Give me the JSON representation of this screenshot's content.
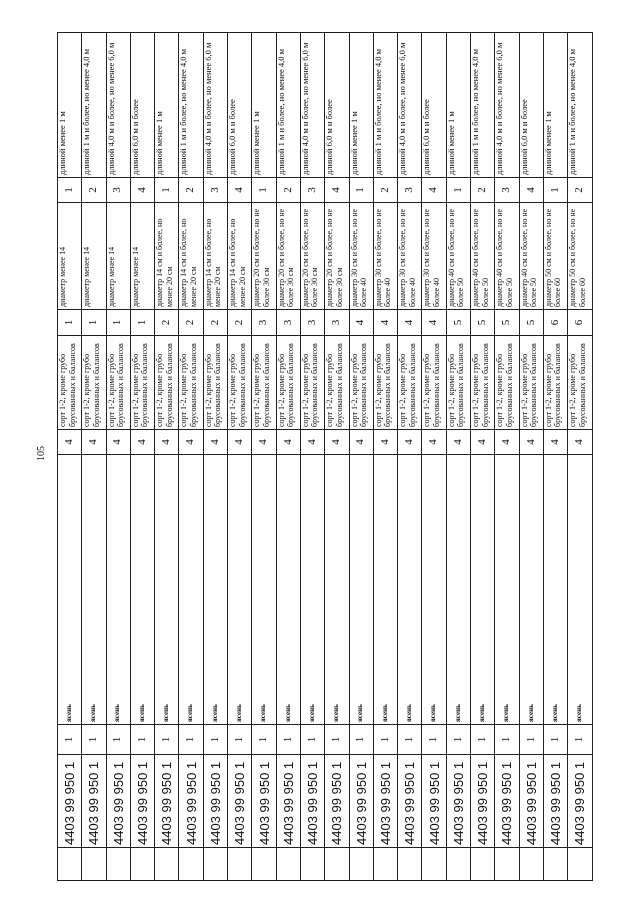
{
  "page_number": "105",
  "rows": [
    {
      "code": "4403 99 950 1",
      "c1": "1",
      "species": "ясень",
      "sort_num": "4",
      "sort": "сорт 1-2, кроме грубо брусованных и балансов",
      "diam_num": "1",
      "diam": "диаметр менее 14",
      "len_num": "1",
      "len": "длиной менее 1 м"
    },
    {
      "code": "4403 99 950 1",
      "c1": "1",
      "species": "ясень",
      "sort_num": "4",
      "sort": "сорт 1-2, кроме грубо брусованных и балансов",
      "diam_num": "1",
      "diam": "диаметр менее 14",
      "len_num": "2",
      "len": "длиной 1 м и более, но менее 4,0 м"
    },
    {
      "code": "4403 99 950 1",
      "c1": "1",
      "species": "ясень",
      "sort_num": "4",
      "sort": "сорт 1-2, кроме грубо брусованных и балансов",
      "diam_num": "1",
      "diam": "диаметр менее 14",
      "len_num": "3",
      "len": "длиной 4,0 м и более, но менее 6,0 м"
    },
    {
      "code": "4403 99 950 1",
      "c1": "1",
      "species": "ясень",
      "sort_num": "4",
      "sort": "сорт 1-2, кроме грубо брусованных и балансов",
      "diam_num": "1",
      "diam": "диаметр менее 14",
      "len_num": "4",
      "len": "длиной 6,0 м и более"
    },
    {
      "code": "4403 99 950 1",
      "c1": "1",
      "species": "ясень",
      "sort_num": "4",
      "sort": "сорт 1-2, кроме грубо брусованных и балансов",
      "diam_num": "2",
      "diam": "диаметр 14 см и более, но менее 20 см",
      "len_num": "1",
      "len": "длиной менее 1 м"
    },
    {
      "code": "4403 99 950 1",
      "c1": "1",
      "species": "ясень",
      "sort_num": "4",
      "sort": "сорт 1-2, кроме грубо брусованных и балансов",
      "diam_num": "2",
      "diam": "диаметр 14 см и более, но менее 20 см",
      "len_num": "2",
      "len": "длиной 1 м и более, но менее 4,0 м"
    },
    {
      "code": "4403 99 950 1",
      "c1": "1",
      "species": "ясень",
      "sort_num": "4",
      "sort": "сорт 1-2, кроме грубо брусованных и балансов",
      "diam_num": "2",
      "diam": "диаметр 14 см и более, но менее 20 см",
      "len_num": "3",
      "len": "длиной 4,0 м и более, но менее 6,0 м"
    },
    {
      "code": "4403 99 950 1",
      "c1": "1",
      "species": "ясень",
      "sort_num": "4",
      "sort": "сорт 1-2, кроме грубо брусованных и балансов",
      "diam_num": "2",
      "diam": "диаметр 14 см и более, но менее 20 см",
      "len_num": "4",
      "len": "длиной 6,0 м и более"
    },
    {
      "code": "4403 99 950 1",
      "c1": "1",
      "species": "ясень",
      "sort_num": "4",
      "sort": "сорт 1-2, кроме грубо брусованных и балансов",
      "diam_num": "3",
      "diam": "диаметр 20 см и более, но не более 30 см",
      "len_num": "1",
      "len": "длиной менее 1 м"
    },
    {
      "code": "4403 99 950 1",
      "c1": "1",
      "species": "ясень",
      "sort_num": "4",
      "sort": "сорт 1-2, кроме грубо брусованных и балансов",
      "diam_num": "3",
      "diam": "диаметр 20 см и более, но не более 30 см",
      "len_num": "2",
      "len": "длиной 1 м и более, но менее 4,0 м"
    },
    {
      "code": "4403 99 950 1",
      "c1": "1",
      "species": "ясень",
      "sort_num": "4",
      "sort": "сорт 1-2, кроме грубо брусованных и балансов",
      "diam_num": "3",
      "diam": "диаметр 20 см и более, но не более 30 см",
      "len_num": "3",
      "len": "длиной 4,0 м и более, но менее 6,0 м"
    },
    {
      "code": "4403 99 950 1",
      "c1": "1",
      "species": "ясень",
      "sort_num": "4",
      "sort": "сорт 1-2, кроме грубо брусованных и балансов",
      "diam_num": "3",
      "diam": "диаметр 20 см и более, но не более 30 см",
      "len_num": "4",
      "len": "длиной 6,0 м и более"
    },
    {
      "code": "4403 99 950 1",
      "c1": "1",
      "species": "ясень",
      "sort_num": "4",
      "sort": "сорт 1-2, кроме грубо брусованных и балансов",
      "diam_num": "4",
      "diam": "диаметр 30 см и более, но не более 40",
      "len_num": "1",
      "len": "длиной менее 1 м"
    },
    {
      "code": "4403 99 950 1",
      "c1": "1",
      "species": "ясень",
      "sort_num": "4",
      "sort": "сорт 1-2, кроме грубо брусованных и балансов",
      "diam_num": "4",
      "diam": "диаметр 30 см и более, но не более 40",
      "len_num": "2",
      "len": "длиной 1 м и более, но менее 4,0 м"
    },
    {
      "code": "4403 99 950 1",
      "c1": "1",
      "species": "ясень",
      "sort_num": "4",
      "sort": "сорт 1-2, кроме грубо брусованных и балансов",
      "diam_num": "4",
      "diam": "диаметр 30 см и более, но не более 40",
      "len_num": "3",
      "len": "длиной 4,0 м и более, но менее 6,0 м"
    },
    {
      "code": "4403 99 950 1",
      "c1": "1",
      "species": "ясень",
      "sort_num": "4",
      "sort": "сорт 1-2, кроме грубо брусованных и балансов",
      "diam_num": "4",
      "diam": "диаметр 30 см и более, но не более 40",
      "len_num": "4",
      "len": "длиной 6,0 м и более"
    },
    {
      "code": "4403 99 950 1",
      "c1": "1",
      "species": "ясень",
      "sort_num": "4",
      "sort": "сорт 1-2, кроме грубо брусованных и балансов",
      "diam_num": "5",
      "diam": "диаметр 40 см и более, но не более 50",
      "len_num": "1",
      "len": "длиной менее 1 м"
    },
    {
      "code": "4403 99 950 1",
      "c1": "1",
      "species": "ясень",
      "sort_num": "4",
      "sort": "сорт 1-2, кроме грубо брусованных и балансов",
      "diam_num": "5",
      "diam": "диаметр 40 см и более, но не более 50",
      "len_num": "2",
      "len": "длиной 1 м и более, но менее 4,0 м"
    },
    {
      "code": "4403 99 950 1",
      "c1": "1",
      "species": "ясень",
      "sort_num": "4",
      "sort": "сорт 1-2, кроме грубо брусованных и балансов",
      "diam_num": "5",
      "diam": "диаметр 40 см и более, но не более 50",
      "len_num": "3",
      "len": "длиной 4,0 м и более, но менее 6,0 м"
    },
    {
      "code": "4403 99 950 1",
      "c1": "1",
      "species": "ясень",
      "sort_num": "4",
      "sort": "сорт 1-2, кроме грубо брусованных и балансов",
      "diam_num": "5",
      "diam": "диаметр 40 см и более, но не более 50",
      "len_num": "4",
      "len": "длиной 6,0 м и более"
    },
    {
      "code": "4403 99 950 1",
      "c1": "1",
      "species": "ясень",
      "sort_num": "4",
      "sort": "сорт 1-2, кроме грубо брусованных и балансов",
      "diam_num": "6",
      "diam": "диаметр 50 см и более, но не более 60",
      "len_num": "1",
      "len": "длиной менее 1 м"
    },
    {
      "code": "4403 99 950 1",
      "c1": "1",
      "species": "ясень",
      "sort_num": "4",
      "sort": "сорт 1-2, кроме грубо брусованных и балансов",
      "diam_num": "6",
      "diam": "диаметр 50 см и более, но не более 60",
      "len_num": "2",
      "len": "длиной 1 м и более, но менее 4,0 м"
    }
  ]
}
